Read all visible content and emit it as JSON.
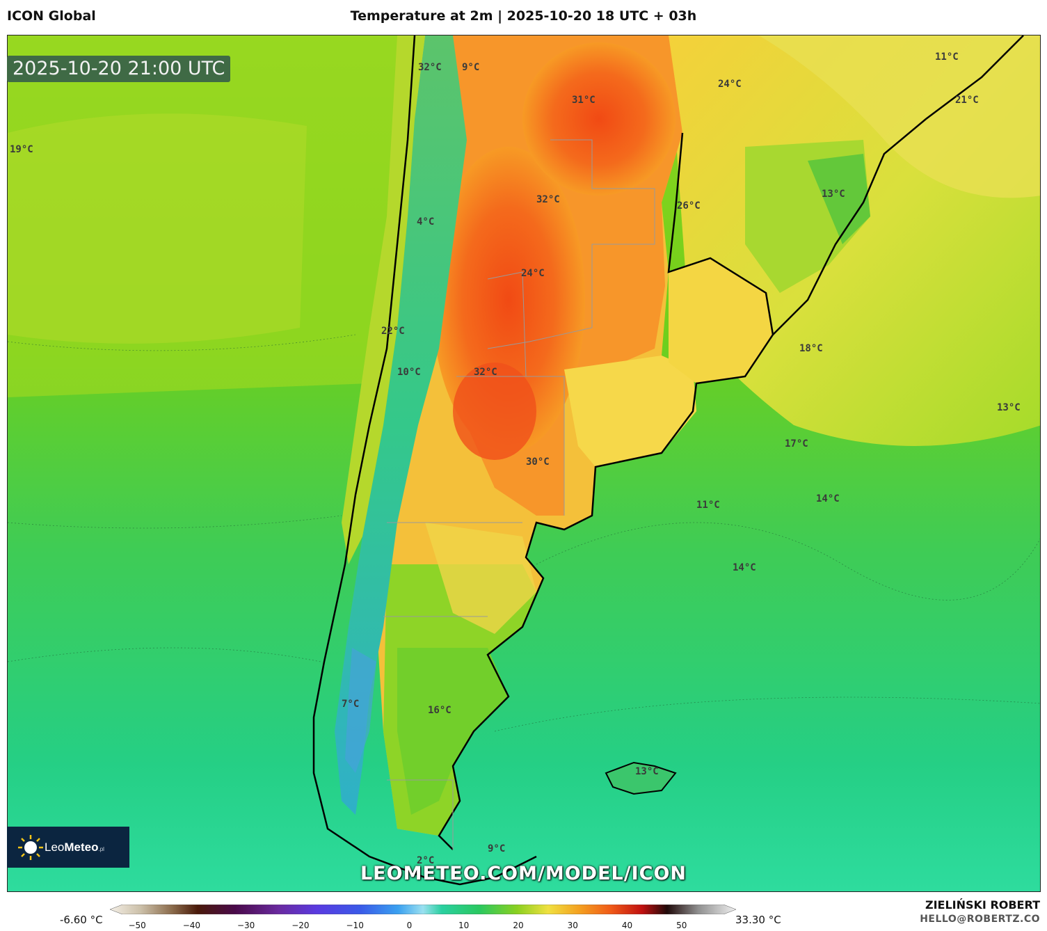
{
  "header": {
    "model_name": "ICON Global",
    "map_title": "Temperature at 2m | 2025-10-20 18 UTC + 03h"
  },
  "timestamp": "2025-10-20 21:00 UTC",
  "temperature_labels": [
    {
      "text": "32°C",
      "id": "t1"
    },
    {
      "text": "9°C",
      "id": "t2"
    },
    {
      "text": "31°C",
      "id": "t3"
    },
    {
      "text": "24°C",
      "id": "t4"
    },
    {
      "text": "11°C",
      "id": "t5"
    },
    {
      "text": "21°C",
      "id": "t6"
    },
    {
      "text": "19°C",
      "id": "t7"
    },
    {
      "text": "32°C",
      "id": "t8"
    },
    {
      "text": "26°C",
      "id": "t9"
    },
    {
      "text": "13°C",
      "id": "t10"
    },
    {
      "text": "4°C",
      "id": "t11"
    },
    {
      "text": "24°C",
      "id": "t12"
    },
    {
      "text": "22°C",
      "id": "t13"
    },
    {
      "text": "18°C",
      "id": "t14"
    },
    {
      "text": "10°C",
      "id": "t15"
    },
    {
      "text": "32°C",
      "id": "t16"
    },
    {
      "text": "13°C",
      "id": "t17"
    },
    {
      "text": "17°C",
      "id": "t18"
    },
    {
      "text": "30°C",
      "id": "t19"
    },
    {
      "text": "14°C",
      "id": "t20"
    },
    {
      "text": "11°C",
      "id": "t21"
    },
    {
      "text": "14°C",
      "id": "t22"
    },
    {
      "text": "16°C",
      "id": "t23"
    },
    {
      "text": "7°C",
      "id": "t24"
    },
    {
      "text": "13°C",
      "id": "t25"
    },
    {
      "text": "9°C",
      "id": "t26"
    },
    {
      "text": "2°C",
      "id": "t27"
    }
  ],
  "logo": {
    "brand_light": "Leo",
    "brand_bold": "Meteo",
    "suffix": ".pl"
  },
  "watermark": "LEOMETEO.COM/MODEL/ICON",
  "color_scale": {
    "min_label": "-6.60 °C",
    "max_label": "33.30 °C",
    "ticks": [
      "−50",
      "−40",
      "−30",
      "−20",
      "−10",
      "0",
      "10",
      "20",
      "30",
      "40",
      "50"
    ],
    "range": [
      -55,
      60
    ]
  },
  "credits": {
    "author": "ZIELIŃSKI ROBERT",
    "email": "HELLO@ROBERTZ.CO"
  },
  "colors": {
    "ocean": "#33cf7a",
    "warm": "#f28a1e",
    "hot": "#f25a1a",
    "timestamp_bg": "#3f6a45",
    "logo_bg": "#0b2540"
  }
}
